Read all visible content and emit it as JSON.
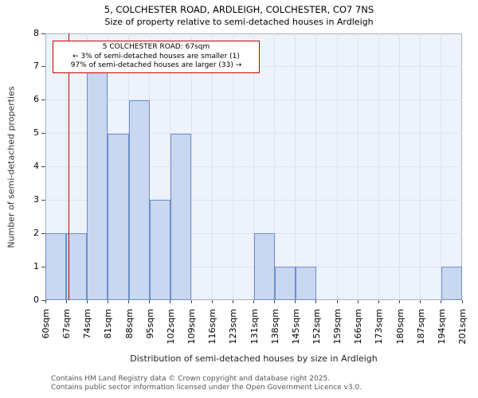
{
  "title": "5, COLCHESTER ROAD, ARDLEIGH, COLCHESTER, CO7 7NS",
  "subtitle": "Size of property relative to semi-detached houses in Ardleigh",
  "annotation": {
    "line1": "5 COLCHESTER ROAD: 67sqm",
    "line2": "← 3% of semi-detached houses are smaller (1)",
    "line3": "97% of semi-detached houses are larger (33) →"
  },
  "footer": {
    "line1": "Contains HM Land Registry data © Crown copyright and database right 2025.",
    "line2": "Contains public sector information licensed under the Open Government Licence v3.0."
  },
  "chart_data": {
    "type": "bar",
    "title": "5, COLCHESTER ROAD, ARDLEIGH, COLCHESTER, CO7 7NS",
    "subtitle": "Size of property relative to semi-detached houses in Ardleigh",
    "xlabel": "Distribution of semi-detached houses by size in Ardleigh",
    "ylabel": "Number of semi-detached properties",
    "categories": [
      "60sqm",
      "67sqm",
      "74sqm",
      "81sqm",
      "88sqm",
      "95sqm",
      "102sqm",
      "109sqm",
      "116sqm",
      "123sqm",
      "131sqm",
      "138sqm",
      "145sqm",
      "152sqm",
      "159sqm",
      "166sqm",
      "173sqm",
      "180sqm",
      "187sqm",
      "194sqm",
      "201sqm"
    ],
    "values": [
      2,
      2,
      7,
      5,
      6,
      3,
      5,
      0,
      0,
      0,
      2,
      1,
      1,
      0,
      0,
      0,
      0,
      0,
      0,
      1
    ],
    "ylim": [
      0,
      8
    ],
    "y_ticks": [
      0,
      1,
      2,
      3,
      4,
      5,
      6,
      7,
      8
    ],
    "grid": true,
    "legend": "none",
    "marker_label": "67sqm",
    "marker_fraction": 0.055,
    "bar_color": "#c9d7f0",
    "bar_border_color": "#6a8fd2",
    "marker_color": "#cc0000",
    "plot_bg_color": "#eef2fb",
    "grid_color": "#dfe3ee"
  }
}
